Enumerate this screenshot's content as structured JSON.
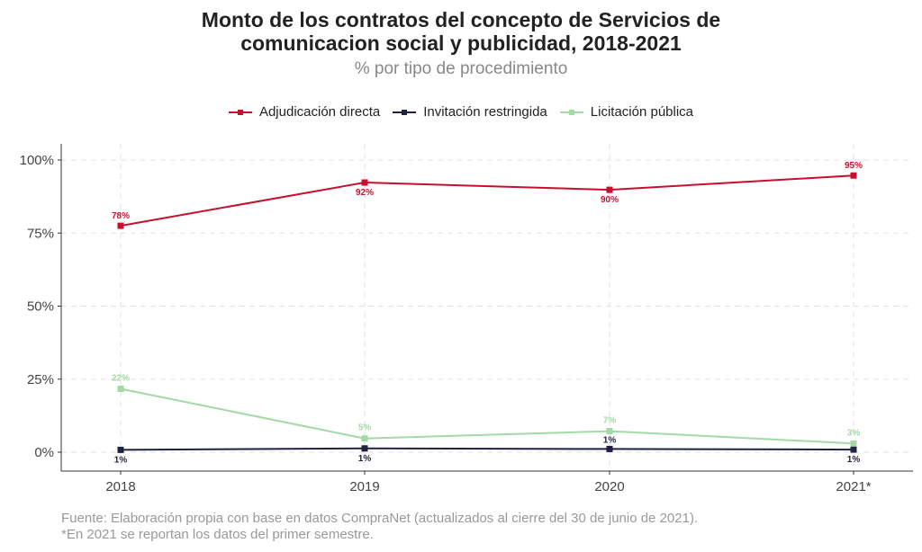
{
  "title_line1": "Monto de los contratos del concepto de Servicios de",
  "title_line2": "comunicacion social y publicidad, 2018-2021",
  "subtitle": "% por tipo de procedimiento",
  "caption_line1": "Fuente: Elaboración propia con base en datos CompraNet (actualizados al cierre del 30 de junio de 2021).",
  "caption_line2": "*En 2021 se reportan los datos del primer semestre.",
  "chart_data": {
    "type": "line",
    "categories": [
      "2018",
      "2019",
      "2020",
      "2021*"
    ],
    "ylim": [
      0,
      100
    ],
    "yticks": [
      0,
      25,
      50,
      75,
      100
    ],
    "ytick_labels": [
      "0%",
      "25%",
      "50%",
      "75%",
      "100%"
    ],
    "grid": true,
    "legend_position": "top",
    "series": [
      {
        "name": "Adjudicación directa",
        "color": "#c8102e",
        "values": [
          77.5,
          92.3,
          89.8,
          94.7
        ],
        "labels": [
          "78%",
          "92%",
          "90%",
          "95%"
        ]
      },
      {
        "name": "Invitación restringida",
        "color": "#1f2240",
        "values": [
          0.8,
          1.3,
          1.1,
          0.9
        ],
        "labels": [
          "1%",
          "1%",
          "1%",
          "1%"
        ]
      },
      {
        "name": "Licitación pública",
        "color": "#a3d9a5",
        "values": [
          21.7,
          4.7,
          7.2,
          3.0
        ],
        "labels": [
          "22%",
          "5%",
          "7%",
          "3%"
        ]
      }
    ]
  }
}
